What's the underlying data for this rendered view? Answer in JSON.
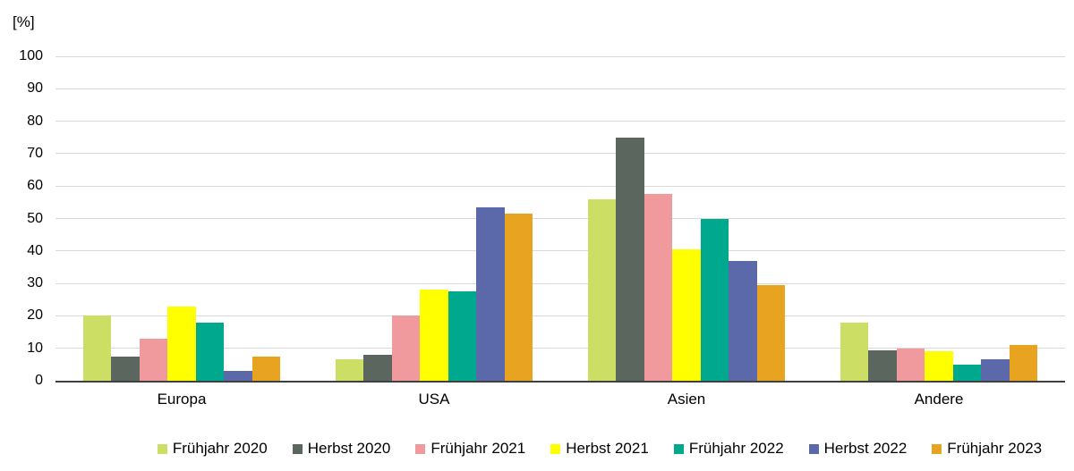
{
  "chart_data": {
    "type": "bar",
    "unit_label": "[%]",
    "categories": [
      "Europa",
      "USA",
      "Asien",
      "Andere"
    ],
    "series": [
      {
        "name": "Frühjahr 2020",
        "color": "#ccde64",
        "values": [
          20,
          6.5,
          56,
          18
        ]
      },
      {
        "name": "Herbst 2020",
        "color": "#5b665e",
        "values": [
          7.5,
          8,
          75,
          9.5
        ]
      },
      {
        "name": "Frühjahr 2021",
        "color": "#f09a9d",
        "values": [
          13,
          20,
          57.5,
          10
        ]
      },
      {
        "name": "Herbst 2021",
        "color": "#ffff00",
        "values": [
          23,
          28,
          40.5,
          9
        ]
      },
      {
        "name": "Frühjahr 2022",
        "color": "#00a88d",
        "values": [
          18,
          27.5,
          50,
          5
        ]
      },
      {
        "name": "Herbst 2022",
        "color": "#5b69ab",
        "values": [
          3,
          53.5,
          37,
          6.5
        ]
      },
      {
        "name": "Frühjahr 2023",
        "color": "#e8a321",
        "values": [
          7.5,
          51.5,
          29.5,
          11
        ]
      }
    ],
    "y_ticks": [
      0,
      10,
      20,
      30,
      40,
      50,
      60,
      70,
      80,
      90,
      100
    ],
    "ylim": [
      0,
      100
    ],
    "grid": true,
    "legend_position": "bottom",
    "axis_color": "#404040",
    "gridline_color": "#d9d9d9"
  }
}
